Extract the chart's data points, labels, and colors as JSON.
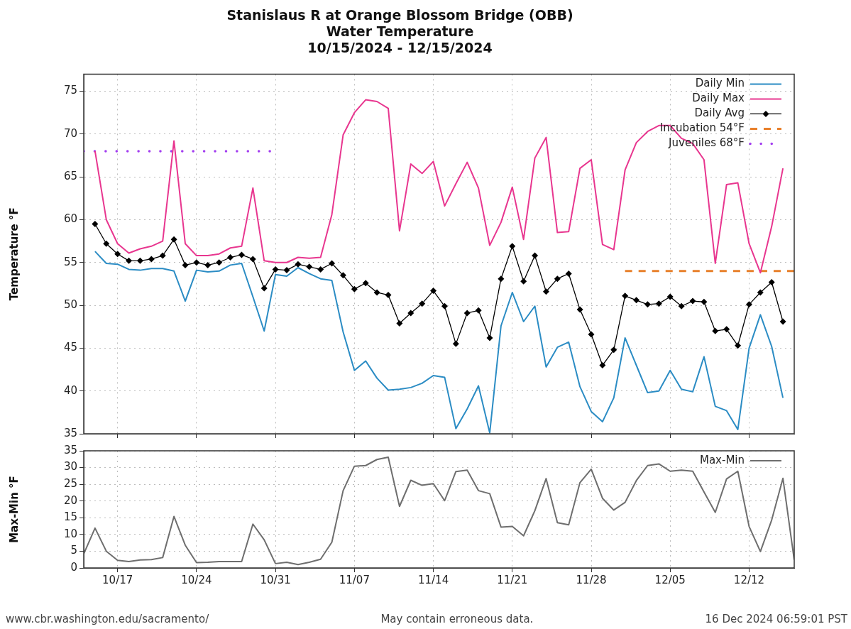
{
  "chart_data": [
    {
      "type": "line",
      "title": "Stanislaus R at Orange Blossom Bridge (OBB)\nWater Temperature\n10/15/2024 - 12/15/2024",
      "ylabel": "Temperature °F",
      "x": [
        "2024-10-15",
        "2024-10-16",
        "2024-10-17",
        "2024-10-18",
        "2024-10-19",
        "2024-10-20",
        "2024-10-21",
        "2024-10-22",
        "2024-10-23",
        "2024-10-24",
        "2024-10-25",
        "2024-10-26",
        "2024-10-27",
        "2024-10-28",
        "2024-10-29",
        "2024-10-30",
        "2024-10-31",
        "2024-11-01",
        "2024-11-02",
        "2024-11-03",
        "2024-11-04",
        "2024-11-05",
        "2024-11-06",
        "2024-11-07",
        "2024-11-08",
        "2024-11-09",
        "2024-11-10",
        "2024-11-11",
        "2024-11-12",
        "2024-11-13",
        "2024-11-14",
        "2024-11-15",
        "2024-11-16",
        "2024-11-17",
        "2024-11-18",
        "2024-11-19",
        "2024-11-20",
        "2024-11-21",
        "2024-11-22",
        "2024-11-23",
        "2024-11-24",
        "2024-11-25",
        "2024-11-26",
        "2024-11-27",
        "2024-11-28",
        "2024-11-29",
        "2024-11-30",
        "2024-12-01",
        "2024-12-02",
        "2024-12-03",
        "2024-12-04",
        "2024-12-05",
        "2024-12-06",
        "2024-12-07",
        "2024-12-08",
        "2024-12-09",
        "2024-12-10",
        "2024-12-11",
        "2024-12-12",
        "2024-12-13",
        "2024-12-14",
        "2024-12-15"
      ],
      "series": [
        {
          "name": "Daily Min",
          "color": "#2b8cc4",
          "values": [
            56.3,
            54.9,
            54.8,
            54.2,
            54.1,
            54.3,
            54.3,
            54.0,
            50.5,
            54.1,
            53.9,
            54.0,
            54.7,
            54.9,
            51.0,
            47.0,
            53.6,
            53.4,
            54.4,
            53.7,
            53.1,
            52.9,
            46.9,
            42.4,
            43.5,
            41.5,
            40.1,
            40.2,
            40.4,
            40.9,
            41.8,
            41.6,
            35.6,
            37.9,
            40.6,
            35.1,
            47.6,
            51.5,
            48.1,
            49.9,
            42.8,
            45.1,
            45.7,
            40.5,
            37.6,
            36.4,
            39.2,
            46.2,
            43.0,
            39.8,
            40.0,
            42.4,
            40.2,
            39.9,
            44.0,
            38.2,
            37.7,
            35.5,
            45.0,
            48.9,
            45.2,
            39.2
          ]
        },
        {
          "name": "Daily Max",
          "color": "#e8368f",
          "values": [
            68.0,
            60.0,
            57.2,
            56.1,
            56.6,
            56.9,
            57.5,
            69.2,
            57.2,
            55.8,
            55.8,
            56.0,
            56.7,
            56.9,
            63.7,
            55.2,
            55.0,
            55.0,
            55.6,
            55.5,
            55.6,
            60.6,
            69.9,
            72.5,
            74.0,
            73.8,
            73.0,
            58.7,
            66.5,
            65.4,
            66.8,
            61.6,
            64.2,
            66.7,
            63.7,
            57.0,
            59.7,
            63.8,
            57.7,
            67.2,
            69.6,
            58.5,
            58.6,
            66.0,
            67.0,
            57.1,
            56.5,
            65.8,
            69.0,
            70.3,
            71.0,
            71.0,
            69.5,
            68.9,
            67.0,
            54.9,
            64.1,
            64.3,
            57.2,
            53.8,
            59.2,
            66.0
          ]
        },
        {
          "name": "Daily Avg",
          "color": "#000000",
          "marker": "diamond",
          "values": [
            59.5,
            57.2,
            56.0,
            55.2,
            55.2,
            55.4,
            55.8,
            57.7,
            54.7,
            55.0,
            54.7,
            55.0,
            55.6,
            55.9,
            55.4,
            52.0,
            54.2,
            54.1,
            54.8,
            54.5,
            54.2,
            54.9,
            53.5,
            51.9,
            52.6,
            51.5,
            51.2,
            47.9,
            49.1,
            50.2,
            51.7,
            49.9,
            45.5,
            49.1,
            49.4,
            46.2,
            53.1,
            56.9,
            52.8,
            55.8,
            51.6,
            53.1,
            53.7,
            49.5,
            46.6,
            43.0,
            44.8,
            51.1,
            50.6,
            50.1,
            50.2,
            51.0,
            49.9,
            50.5,
            50.4,
            47.0,
            47.2,
            45.3,
            50.1,
            51.5,
            52.7,
            48.1
          ]
        },
        {
          "name": "Incubation 54°F",
          "color": "#e8802b",
          "line_style": "dashed",
          "x": [
            "2024-12-01",
            "2024-12-16"
          ],
          "values": [
            54,
            54
          ]
        },
        {
          "name": "Juveniles 68°F",
          "color": "#a33ef0",
          "line_style": "dotted",
          "x": [
            "2024-10-14",
            "2024-10-30T12:00"
          ],
          "values": [
            68,
            68
          ]
        }
      ],
      "xlim": [
        "2024-10-14",
        "2024-12-16"
      ],
      "xticks": [
        {
          "value": "2024-10-17",
          "label": null
        },
        {
          "value": "2024-10-24",
          "label": null
        },
        {
          "value": "2024-10-31",
          "label": null
        },
        {
          "value": "2024-11-07",
          "label": null
        },
        {
          "value": "2024-11-14",
          "label": null
        },
        {
          "value": "2024-11-21",
          "label": null
        },
        {
          "value": "2024-11-28",
          "label": null
        },
        {
          "value": "2024-12-05",
          "label": null
        },
        {
          "value": "2024-12-12",
          "label": null
        }
      ],
      "ylim": [
        35,
        77
      ],
      "yticks": [
        35,
        40,
        45,
        50,
        55,
        60,
        65,
        70,
        75
      ],
      "tick_labels": "y",
      "grid": true,
      "legend": "top right"
    },
    {
      "type": "line",
      "ylabel": "Max-Min °F",
      "series": [
        {
          "name": "Max-Min",
          "color": "#6e6e6e",
          "x": [
            "2024-10-14",
            "2024-10-15",
            "2024-10-16",
            "2024-10-17",
            "2024-10-18",
            "2024-10-19",
            "2024-10-20",
            "2024-10-21",
            "2024-10-22",
            "2024-10-23",
            "2024-10-24",
            "2024-10-25",
            "2024-10-26",
            "2024-10-27",
            "2024-10-28",
            "2024-10-29",
            "2024-10-30",
            "2024-10-31",
            "2024-11-01",
            "2024-11-02",
            "2024-11-03",
            "2024-11-04",
            "2024-11-05",
            "2024-11-06",
            "2024-11-07",
            "2024-11-08",
            "2024-11-09",
            "2024-11-10",
            "2024-11-11",
            "2024-11-12",
            "2024-11-13",
            "2024-11-14",
            "2024-11-15",
            "2024-11-16",
            "2024-11-17",
            "2024-11-18",
            "2024-11-19",
            "2024-11-20",
            "2024-11-21",
            "2024-11-22",
            "2024-11-23",
            "2024-11-24",
            "2024-11-25",
            "2024-11-26",
            "2024-11-27",
            "2024-11-28",
            "2024-11-29",
            "2024-11-30",
            "2024-12-01",
            "2024-12-02",
            "2024-12-03",
            "2024-12-04",
            "2024-12-05",
            "2024-12-06",
            "2024-12-07",
            "2024-12-08",
            "2024-12-09",
            "2024-12-10",
            "2024-12-11",
            "2024-12-12",
            "2024-12-13",
            "2024-12-14",
            "2024-12-15",
            "2024-12-16"
          ],
          "values": [
            4.2,
            11.9,
            5.0,
            2.3,
            1.9,
            2.4,
            2.5,
            3.1,
            15.4,
            6.8,
            1.6,
            1.7,
            1.9,
            1.9,
            1.9,
            13.1,
            8.4,
            1.3,
            1.7,
            1.0,
            1.7,
            2.6,
            7.7,
            23.1,
            30.4,
            30.6,
            32.4,
            33.1,
            18.4,
            26.2,
            24.7,
            25.2,
            20.1,
            28.8,
            29.2,
            23.1,
            22.2,
            12.2,
            12.4,
            9.6,
            17.1,
            26.7,
            13.5,
            12.9,
            25.5,
            29.5,
            20.8,
            17.3,
            19.6,
            26.1,
            30.6,
            31.1,
            28.9,
            29.2,
            28.9,
            22.7,
            16.6,
            26.6,
            28.9,
            12.4,
            4.9,
            14.3,
            26.8,
            2.4
          ]
        }
      ],
      "xlim": [
        "2024-10-14",
        "2024-12-16"
      ],
      "xticks": [
        {
          "value": "2024-10-17",
          "label": "10/17"
        },
        {
          "value": "2024-10-24",
          "label": "10/24"
        },
        {
          "value": "2024-10-31",
          "label": "10/31"
        },
        {
          "value": "2024-11-07",
          "label": "11/07"
        },
        {
          "value": "2024-11-14",
          "label": "11/14"
        },
        {
          "value": "2024-11-21",
          "label": "11/21"
        },
        {
          "value": "2024-11-28",
          "label": "11/28"
        },
        {
          "value": "2024-12-05",
          "label": "12/05"
        },
        {
          "value": "2024-12-12",
          "label": "12/12"
        }
      ],
      "ylim": [
        0,
        35
      ],
      "yticks": [
        0,
        5,
        10,
        15,
        20,
        25,
        30,
        35
      ],
      "grid": true,
      "legend": "top right",
      "annotations": [
        "www.cbr.washington.edu/sacramento/",
        "May contain erroneous data.",
        "16 Dec 2024 06:59:01 PST"
      ]
    }
  ]
}
